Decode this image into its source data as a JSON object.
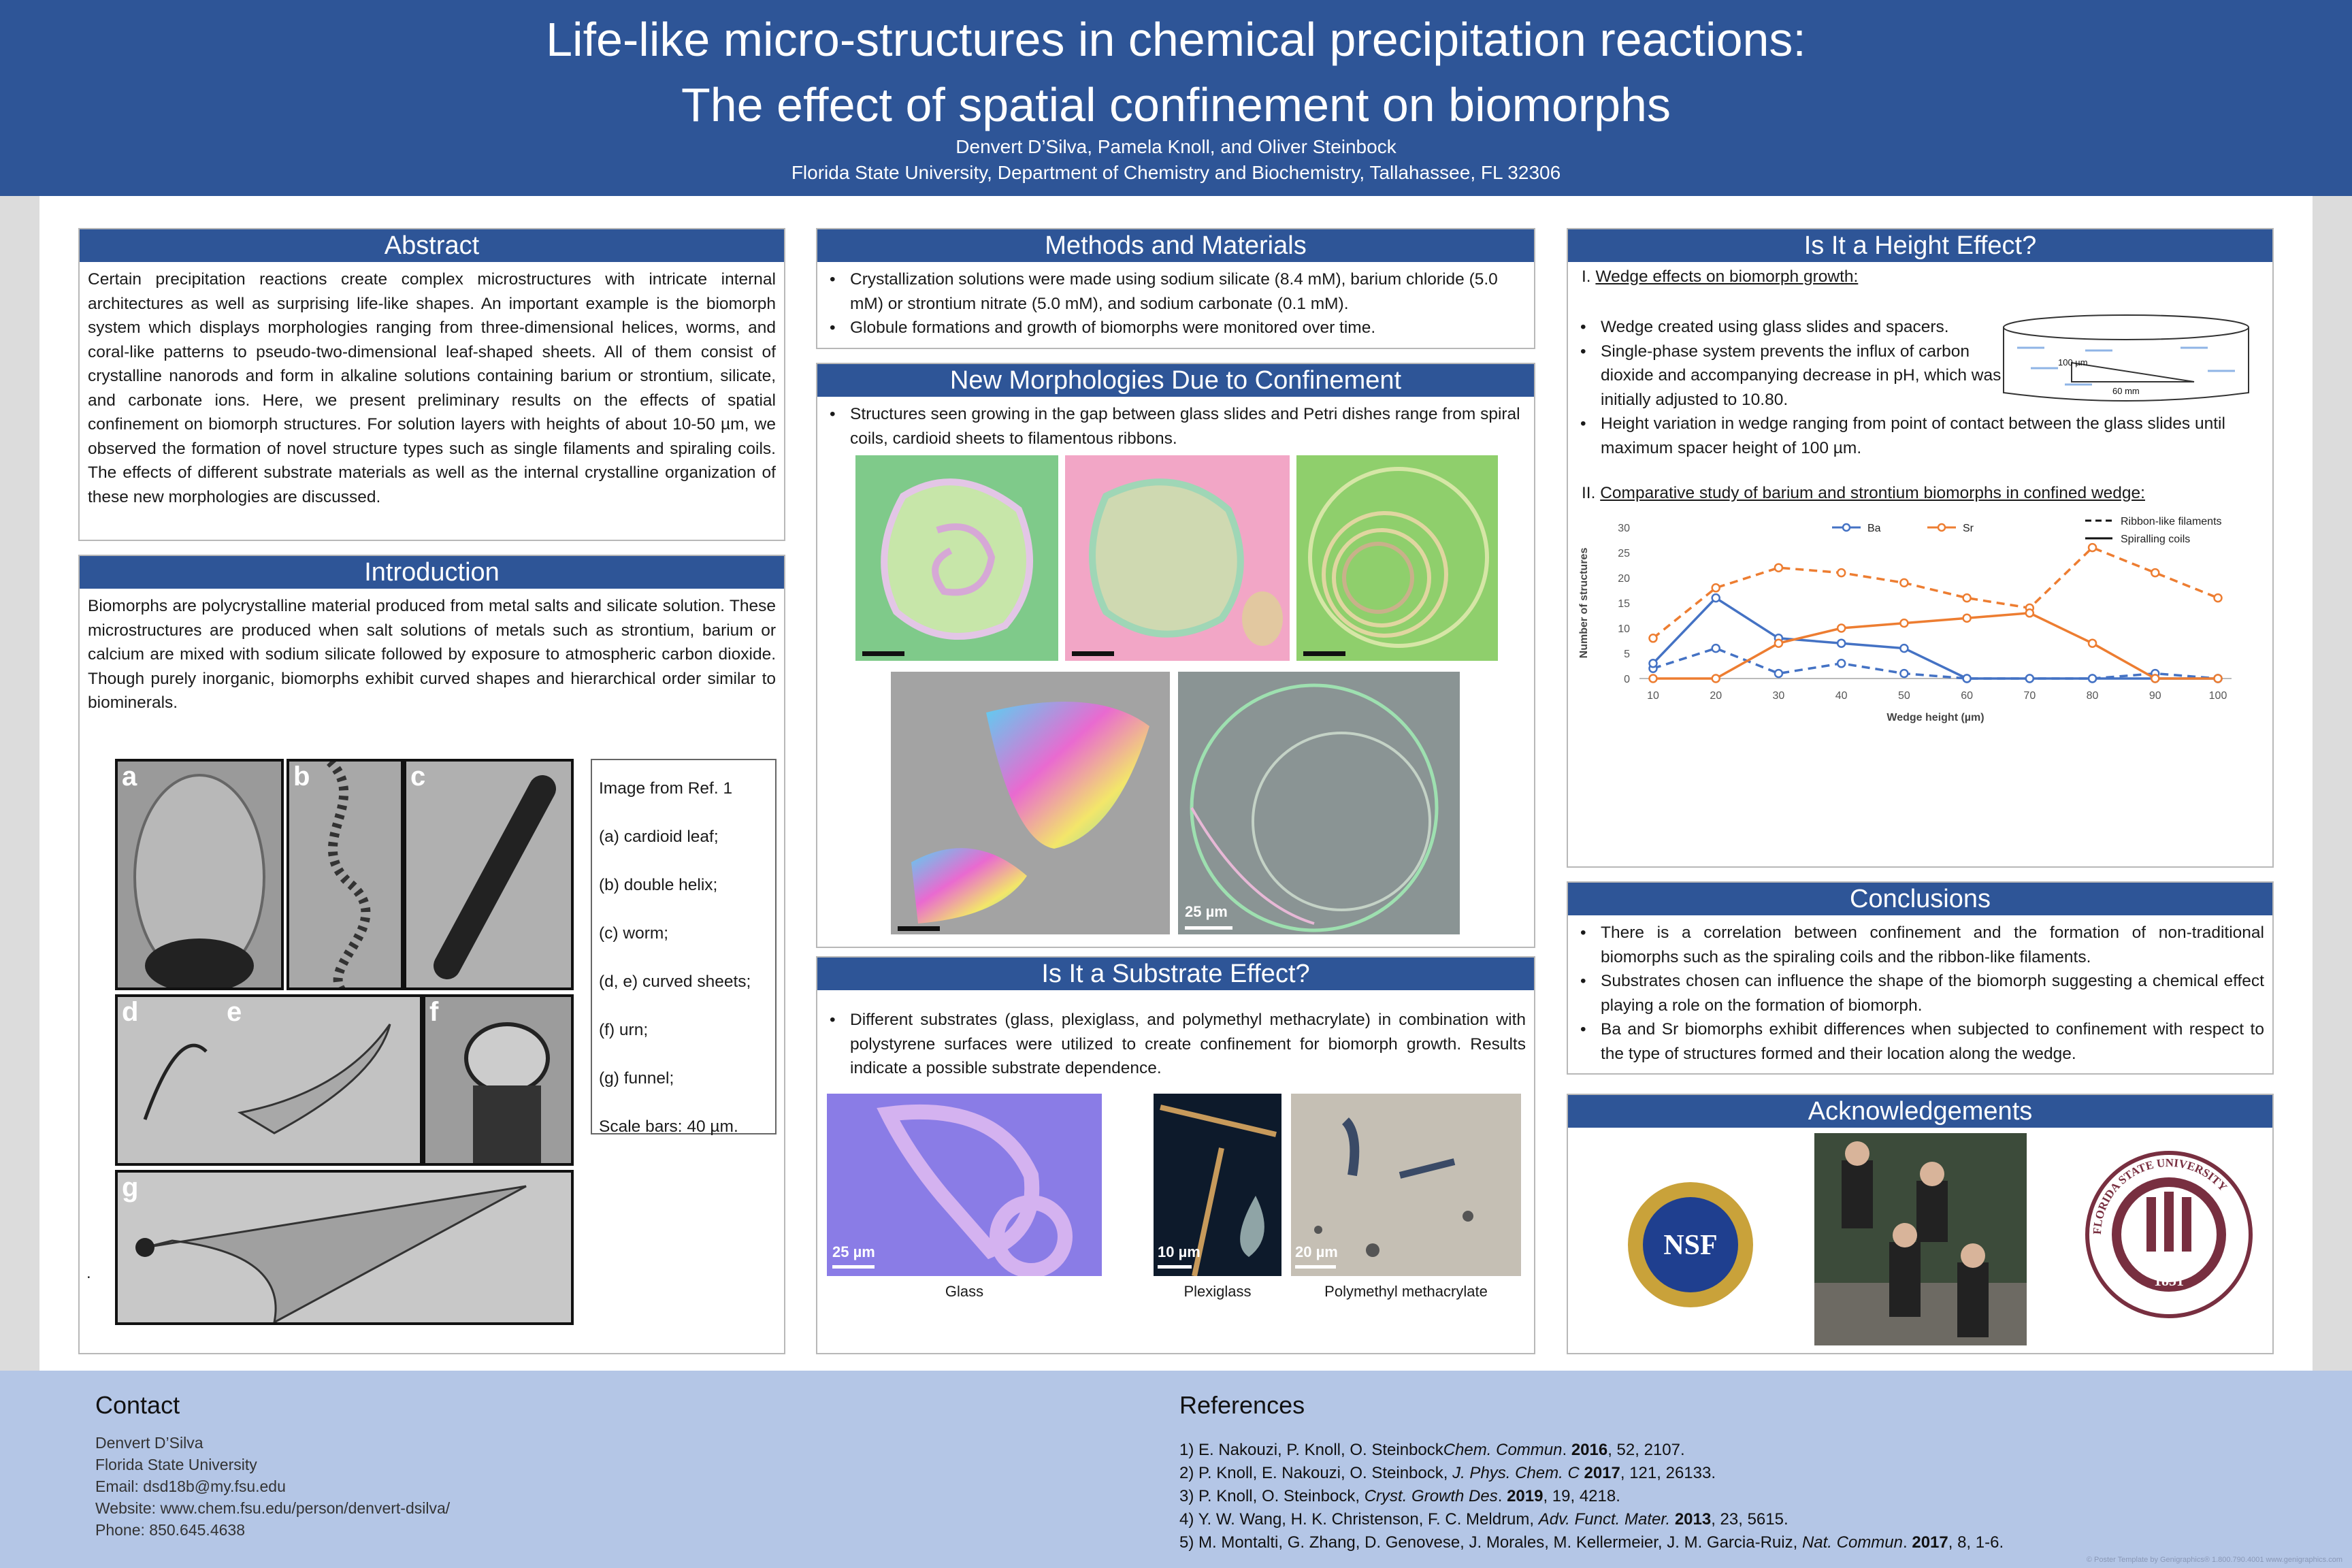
{
  "header": {
    "title_line1": "Life-like micro-structures in chemical precipitation reactions:",
    "title_line2": "The effect of spatial confinement on biomorphs",
    "authors": "Denvert D’Silva, Pamela Knoll, and Oliver Steinbock",
    "affiliation": "Florida State University, Department of Chemistry and Biochemistry, Tallahassee, FL 32306"
  },
  "abstract": {
    "title": "Abstract",
    "text": "Certain precipitation reactions create complex microstructures with intricate internal architectures as well as surprising life-like shapes. An important example is the biomorph system which displays morphologies ranging from three-dimensional helices, worms, and coral-like patterns to pseudo-two-dimensional leaf-shaped sheets. All of them consist of crystalline nanorods and form in alkaline solutions containing barium or strontium, silicate, and carbonate ions. Here, we present preliminary results on the effects of spatial confinement on biomorph structures. For solution layers with heights of about 10-50 µm, we observed the formation of novel structure types such as single filaments and spiraling coils. The effects of different substrate materials as well as the internal crystalline organization of these new morphologies are discussed."
  },
  "introduction": {
    "title": "Introduction",
    "text": "Biomorphs are polycrystalline material produced from metal salts and silicate solution. These microstructures are produced when salt solutions of metals such as strontium, barium or calcium are mixed with sodium silicate followed by exposure to atmospheric carbon dioxide. Though purely inorganic, biomorphs exhibit curved shapes and hierarchical order similar to biominerals.",
    "figure_letters": [
      "a",
      "b",
      "c",
      "d",
      "e",
      "f",
      "g"
    ],
    "legend": [
      "Image from Ref. 1",
      "(a) cardioid leaf;",
      "(b) double helix;",
      "(c) worm;",
      "(d, e) curved sheets;",
      "(f) urn;",
      "(g) funnel;",
      "Scale bars: 40 µm."
    ],
    "dot": "."
  },
  "methods": {
    "title": "Methods and Materials",
    "bullets": [
      "Crystallization solutions were made using sodium silicate (8.4 mM), barium chloride (5.0 mM) or strontium nitrate (5.0 mM), and sodium carbonate (0.1 mM).",
      "Globule formations and growth of biomorphs were monitored over time."
    ]
  },
  "morphologies": {
    "title": "New Morphologies Due to Confinement",
    "bullet": "Structures seen growing in the gap between glass slides and Petri dishes range from spiral coils, cardioid sheets to filamentous ribbons.",
    "scale_label": "25 µm"
  },
  "substrate": {
    "title": "Is It a Substrate Effect?",
    "bullet": "Different substrates (glass, plexiglass, and polymethyl methacrylate) in combination with polystyrene surfaces were utilized to create confinement for biomorph growth. Results indicate a possible substrate dependence.",
    "scales": [
      "25 µm",
      "10 µm",
      "20 µm"
    ],
    "captions": [
      "Glass",
      "Plexiglass",
      "Polymethyl methacrylate"
    ]
  },
  "height": {
    "title": "Is It a Height Effect?",
    "sub1": "Wedge effects on biomorph growth:",
    "sub1_num": "I.",
    "bullets": [
      "Wedge created using glass slides and spacers.",
      "Single-phase system prevents the influx of carbon dioxide and accompanying decrease in pH, which was initially adjusted to 10.80.",
      "Height variation in wedge ranging from point of contact between the glass slides until maximum spacer height of 100 µm."
    ],
    "wedge_label_h": "100 µm",
    "wedge_label_w": "60 mm",
    "sub2": "Comparative study of barium and strontium biomorphs in confined wedge:",
    "sub2_num": "II."
  },
  "chart_data": {
    "type": "line",
    "xlabel": "Wedge height (µm)",
    "ylabel": "Number of structures",
    "x": [
      10,
      20,
      30,
      40,
      50,
      60,
      70,
      80,
      90,
      100
    ],
    "ylim": [
      0,
      30
    ],
    "yticks": [
      0,
      5,
      10,
      15,
      20,
      25,
      30
    ],
    "series": [
      {
        "name": "Ba",
        "style": "Ribbon-like filaments",
        "color": "#4472c4",
        "values": [
          2,
          6,
          1,
          3,
          1,
          0,
          0,
          0,
          1,
          0
        ]
      },
      {
        "name": "Ba",
        "style": "Spiralling coils",
        "color": "#4472c4",
        "values": [
          3,
          16,
          8,
          7,
          6,
          0,
          0,
          0,
          0,
          0
        ]
      },
      {
        "name": "Sr",
        "style": "Ribbon-like filaments",
        "color": "#ed7d31",
        "values": [
          8,
          18,
          22,
          21,
          19,
          16,
          14,
          26,
          21,
          16
        ]
      },
      {
        "name": "Sr",
        "style": "Spiralling coils",
        "color": "#ed7d31",
        "values": [
          0,
          0,
          7,
          10,
          11,
          12,
          13,
          7,
          0,
          0
        ]
      }
    ],
    "legend": {
      "series": [
        "Ba",
        "Sr"
      ],
      "styles": [
        "Ribbon-like filaments",
        "Spiralling coils"
      ]
    }
  },
  "conclusions": {
    "title": "Conclusions",
    "bullets": [
      "There is a correlation between confinement and the formation of non-traditional biomorphs such as the spiraling coils and the ribbon-like filaments.",
      "Substrates chosen can influence the shape of the biomorph suggesting a chemical effect playing a role on the formation of biomorph.",
      "Ba and Sr biomorphs exhibit differences when subjected to confinement with respect to the type of structures formed and their location along the wedge."
    ]
  },
  "acknowledgements": {
    "title": "Acknowledgements",
    "nsf": "NSF",
    "fsu_ring": "FLORIDA STATE UNIVERSITY",
    "fsu_year": "1851"
  },
  "contact": {
    "title": "Contact",
    "lines": [
      "Denvert D’Silva",
      "Florida State University",
      "Email: dsd18b@my.fsu.edu",
      "Website: www.chem.fsu.edu/person/denvert-dsilva/",
      "Phone: 850.645.4638"
    ]
  },
  "references": {
    "title": "References",
    "items": [
      {
        "pre": "1) E. Nakouzi, P. Knoll, O. Steinbock",
        "j": "Chem. Commun",
        "post": ". ",
        "y": "2016",
        "tail": ", 52, 2107."
      },
      {
        "pre": "2) P. Knoll, E. Nakouzi, O. Steinbock, ",
        "j": "J. Phys. Chem. C",
        "post": " ",
        "y": "2017",
        "tail": ", 121, 26133."
      },
      {
        "pre": "3) P. Knoll, O. Steinbock, ",
        "j": "Cryst. Growth Des",
        "post": ". ",
        "y": "2019",
        "tail": ", 19, 4218."
      },
      {
        "pre": "4) Y. W. Wang, H. K. Christenson, F. C. Meldrum, ",
        "j": "Adv. Funct. Mater.",
        "post": " ",
        "y": "2013",
        "tail": ", 23, 5615."
      },
      {
        "pre": "5) M. Montalti, G. Zhang, D. Genovese, J. Morales, M. Kellermeier, J. M. Garcia-Ruiz, ",
        "j": "Nat. Commun",
        "post": ". ",
        "y": "2017",
        "tail": ", 8, 1-6."
      }
    ]
  },
  "template_credit": "© Poster Template by Genigraphics® 1.800.790.4001 www.genigraphics.com"
}
